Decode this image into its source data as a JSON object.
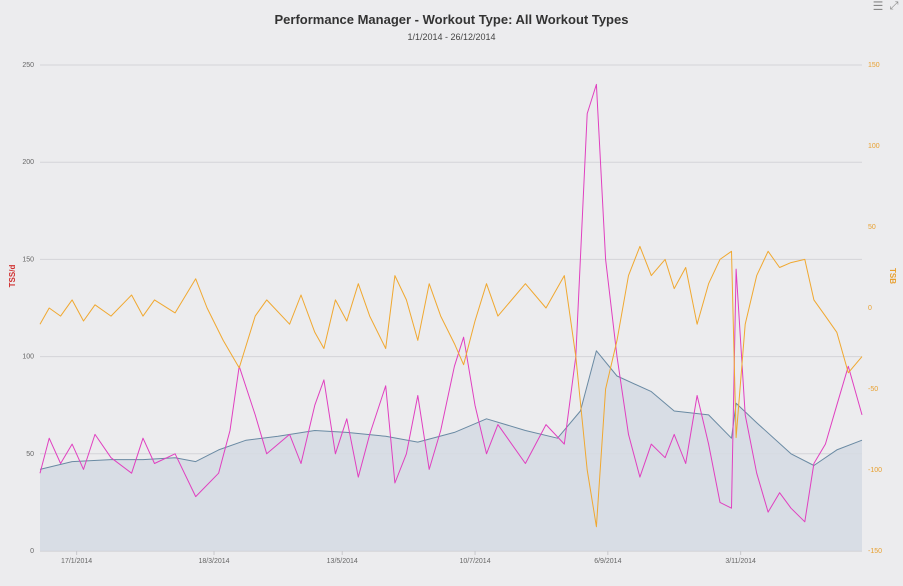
{
  "header": {
    "menu_icon": "hamburger-menu-icon",
    "expand_icon": "expand-icon"
  },
  "chart_data": {
    "type": "line",
    "title": "Performance Manager - Workout Type: All Workout Types",
    "subtitle": "1/1/2014 - 26/12/2014",
    "x_range": [
      "2014-01-01",
      "2014-12-26"
    ],
    "x_ticks": [
      "17/1/2014",
      "18/3/2014",
      "13/5/2014",
      "10/7/2014",
      "6/9/2014",
      "3/11/2014"
    ],
    "y_left": {
      "label": "TSS/d",
      "range": [
        0,
        250
      ],
      "ticks": [
        0,
        50,
        100,
        150,
        200,
        250
      ]
    },
    "y_right": {
      "label": "TSB",
      "range": [
        -150,
        150
      ],
      "ticks": [
        -150,
        -100,
        -50,
        0,
        50,
        100,
        150
      ]
    },
    "grid": true,
    "colors": {
      "ctl": "#6a8aa3",
      "ctl_fill": "#d5dbe3",
      "atl": "#e040c0",
      "tsb": "#f0a830"
    },
    "series": [
      {
        "axis": "left",
        "kind": "area",
        "points": [
          [
            "2014-01-01",
            42
          ],
          [
            "2014-01-15",
            46
          ],
          [
            "2014-02-01",
            47
          ],
          [
            "2014-02-15",
            47
          ],
          [
            "2014-03-01",
            48
          ],
          [
            "2014-03-10",
            46
          ],
          [
            "2014-03-20",
            52
          ],
          [
            "2014-04-01",
            57
          ],
          [
            "2014-04-15",
            59
          ],
          [
            "2014-05-01",
            62
          ],
          [
            "2014-05-15",
            61
          ],
          [
            "2014-06-01",
            59
          ],
          [
            "2014-06-15",
            56
          ],
          [
            "2014-07-01",
            61
          ],
          [
            "2014-07-15",
            68
          ],
          [
            "2014-08-01",
            62
          ],
          [
            "2014-08-15",
            58
          ],
          [
            "2014-08-25",
            72
          ],
          [
            "2014-09-01",
            103
          ],
          [
            "2014-09-10",
            90
          ],
          [
            "2014-09-25",
            82
          ],
          [
            "2014-10-05",
            72
          ],
          [
            "2014-10-20",
            70
          ],
          [
            "2014-10-30",
            58
          ],
          [
            "2014-11-01",
            76
          ],
          [
            "2014-11-10",
            66
          ],
          [
            "2014-11-25",
            50
          ],
          [
            "2014-12-05",
            44
          ],
          [
            "2014-12-15",
            52
          ],
          [
            "2014-12-26",
            57
          ]
        ]
      },
      {
        "axis": "left",
        "kind": "line",
        "points": [
          [
            "2014-01-01",
            40
          ],
          [
            "2014-01-05",
            58
          ],
          [
            "2014-01-10",
            45
          ],
          [
            "2014-01-15",
            55
          ],
          [
            "2014-01-20",
            42
          ],
          [
            "2014-01-25",
            60
          ],
          [
            "2014-02-01",
            48
          ],
          [
            "2014-02-10",
            40
          ],
          [
            "2014-02-15",
            58
          ],
          [
            "2014-02-20",
            45
          ],
          [
            "2014-03-01",
            50
          ],
          [
            "2014-03-10",
            28
          ],
          [
            "2014-03-20",
            40
          ],
          [
            "2014-03-25",
            62
          ],
          [
            "2014-03-29",
            95
          ],
          [
            "2014-04-05",
            70
          ],
          [
            "2014-04-10",
            50
          ],
          [
            "2014-04-20",
            60
          ],
          [
            "2014-04-25",
            45
          ],
          [
            "2014-05-01",
            75
          ],
          [
            "2014-05-05",
            88
          ],
          [
            "2014-05-10",
            50
          ],
          [
            "2014-05-15",
            68
          ],
          [
            "2014-05-20",
            38
          ],
          [
            "2014-05-25",
            60
          ],
          [
            "2014-06-01",
            85
          ],
          [
            "2014-06-05",
            35
          ],
          [
            "2014-06-10",
            50
          ],
          [
            "2014-06-15",
            80
          ],
          [
            "2014-06-20",
            42
          ],
          [
            "2014-06-25",
            62
          ],
          [
            "2014-07-01",
            95
          ],
          [
            "2014-07-05",
            110
          ],
          [
            "2014-07-10",
            75
          ],
          [
            "2014-07-15",
            50
          ],
          [
            "2014-07-20",
            65
          ],
          [
            "2014-08-01",
            45
          ],
          [
            "2014-08-10",
            65
          ],
          [
            "2014-08-18",
            55
          ],
          [
            "2014-08-23",
            100
          ],
          [
            "2014-08-28",
            225
          ],
          [
            "2014-09-01",
            240
          ],
          [
            "2014-09-05",
            150
          ],
          [
            "2014-09-10",
            100
          ],
          [
            "2014-09-15",
            60
          ],
          [
            "2014-09-20",
            38
          ],
          [
            "2014-09-25",
            55
          ],
          [
            "2014-10-01",
            48
          ],
          [
            "2014-10-05",
            60
          ],
          [
            "2014-10-10",
            45
          ],
          [
            "2014-10-15",
            80
          ],
          [
            "2014-10-20",
            55
          ],
          [
            "2014-10-25",
            25
          ],
          [
            "2014-10-30",
            22
          ],
          [
            "2014-11-01",
            145
          ],
          [
            "2014-11-05",
            70
          ],
          [
            "2014-11-10",
            40
          ],
          [
            "2014-11-15",
            20
          ],
          [
            "2014-11-20",
            30
          ],
          [
            "2014-11-25",
            22
          ],
          [
            "2014-12-01",
            15
          ],
          [
            "2014-12-05",
            45
          ],
          [
            "2014-12-10",
            55
          ],
          [
            "2014-12-15",
            75
          ],
          [
            "2014-12-20",
            95
          ],
          [
            "2014-12-26",
            70
          ]
        ]
      },
      {
        "axis": "right",
        "kind": "line",
        "points": [
          [
            "2014-01-01",
            -10
          ],
          [
            "2014-01-05",
            0
          ],
          [
            "2014-01-10",
            -5
          ],
          [
            "2014-01-15",
            5
          ],
          [
            "2014-01-20",
            -8
          ],
          [
            "2014-01-25",
            2
          ],
          [
            "2014-02-01",
            -5
          ],
          [
            "2014-02-10",
            8
          ],
          [
            "2014-02-15",
            -5
          ],
          [
            "2014-02-20",
            5
          ],
          [
            "2014-03-01",
            -3
          ],
          [
            "2014-03-10",
            18
          ],
          [
            "2014-03-15",
            0
          ],
          [
            "2014-03-22",
            -20
          ],
          [
            "2014-03-29",
            -37
          ],
          [
            "2014-04-05",
            -5
          ],
          [
            "2014-04-10",
            5
          ],
          [
            "2014-04-20",
            -10
          ],
          [
            "2014-04-25",
            8
          ],
          [
            "2014-05-01",
            -15
          ],
          [
            "2014-05-05",
            -25
          ],
          [
            "2014-05-10",
            5
          ],
          [
            "2014-05-15",
            -8
          ],
          [
            "2014-05-20",
            15
          ],
          [
            "2014-05-25",
            -5
          ],
          [
            "2014-06-01",
            -25
          ],
          [
            "2014-06-05",
            20
          ],
          [
            "2014-06-10",
            5
          ],
          [
            "2014-06-15",
            -20
          ],
          [
            "2014-06-20",
            15
          ],
          [
            "2014-06-25",
            -5
          ],
          [
            "2014-07-01",
            -22
          ],
          [
            "2014-07-05",
            -35
          ],
          [
            "2014-07-10",
            -8
          ],
          [
            "2014-07-15",
            15
          ],
          [
            "2014-07-20",
            -5
          ],
          [
            "2014-08-01",
            15
          ],
          [
            "2014-08-10",
            0
          ],
          [
            "2014-08-18",
            20
          ],
          [
            "2014-08-23",
            -30
          ],
          [
            "2014-08-28",
            -100
          ],
          [
            "2014-09-01",
            -135
          ],
          [
            "2014-09-05",
            -50
          ],
          [
            "2014-09-10",
            -20
          ],
          [
            "2014-09-15",
            20
          ],
          [
            "2014-09-20",
            38
          ],
          [
            "2014-09-25",
            20
          ],
          [
            "2014-10-01",
            30
          ],
          [
            "2014-10-05",
            12
          ],
          [
            "2014-10-10",
            25
          ],
          [
            "2014-10-15",
            -10
          ],
          [
            "2014-10-20",
            15
          ],
          [
            "2014-10-25",
            30
          ],
          [
            "2014-10-30",
            35
          ],
          [
            "2014-11-01",
            -80
          ],
          [
            "2014-11-05",
            -10
          ],
          [
            "2014-11-10",
            20
          ],
          [
            "2014-11-15",
            35
          ],
          [
            "2014-11-20",
            25
          ],
          [
            "2014-11-25",
            28
          ],
          [
            "2014-12-01",
            30
          ],
          [
            "2014-12-05",
            5
          ],
          [
            "2014-12-10",
            -5
          ],
          [
            "2014-12-15",
            -15
          ],
          [
            "2014-12-20",
            -40
          ],
          [
            "2014-12-26",
            -30
          ]
        ]
      }
    ]
  }
}
